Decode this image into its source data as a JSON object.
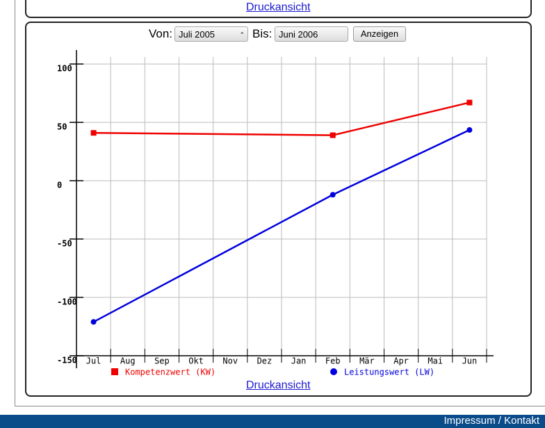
{
  "header_link": "Druckansicht",
  "controls": {
    "from_label": "Von:",
    "from_value": "Juli 2005",
    "to_label": "Bis:",
    "to_value": "Juni 2006",
    "button": "Anzeigen"
  },
  "chart_data": {
    "type": "line",
    "categories": [
      "Jul",
      "Aug",
      "Sep",
      "Okt",
      "Nov",
      "Dez",
      "Jan",
      "Feb",
      "Mär",
      "Apr",
      "Mai",
      "Jun"
    ],
    "ylim": [
      -150,
      112
    ],
    "yticks": [
      -150,
      -100,
      -50,
      0,
      50,
      100
    ],
    "grid": true,
    "series": [
      {
        "name": "Kompetenzwert (KW)",
        "color": "#ee0000",
        "marker": "square",
        "x": [
          "Jul",
          "Feb",
          "Jun"
        ],
        "values": [
          41,
          39,
          67
        ]
      },
      {
        "name": "Leistungswert (LW)",
        "color": "#0000dd",
        "marker": "circle",
        "x": [
          "Jul",
          "Feb",
          "Jun"
        ],
        "values": [
          -121,
          -12,
          43.5
        ]
      }
    ]
  },
  "footer_link": "Druckansicht",
  "footer": "Impressum / Kontakt"
}
